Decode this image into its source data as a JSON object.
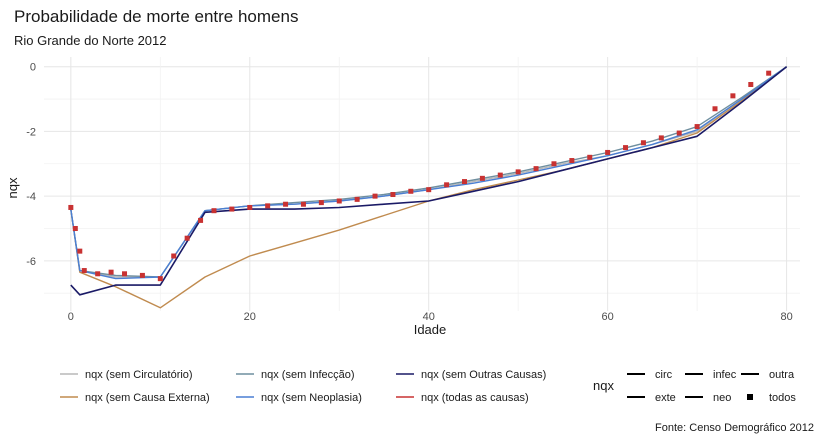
{
  "chart_data": {
    "type": "line",
    "title": "Probabilidade de morte entre homens",
    "subtitle": "Rio Grande do Norte 2012",
    "xlabel": "Idade",
    "ylabel": "nqx",
    "caption": "Fonte: Censo Demográfico 2012",
    "xlim": [
      -3,
      81.5
    ],
    "ylim": [
      -7.55,
      0.3
    ],
    "x_ticks": [
      0,
      20,
      40,
      60,
      80
    ],
    "y_ticks": [
      0,
      -2,
      -4,
      -6
    ],
    "grid": true,
    "legend_placement": "bottom",
    "legend": {
      "color_entries": [
        {
          "label": "nqx (sem Circulatório)",
          "color": "#b8b8b8"
        },
        {
          "label": "nqx (sem Causa Externa)",
          "color": "#c08b4f"
        },
        {
          "label": "nqx (sem Infecção)",
          "color": "#6f8f9f"
        },
        {
          "label": "nqx (sem Neoplasia)",
          "color": "#4a7fd4"
        },
        {
          "label": "nqx (sem Outras Causas)",
          "color": "#1a1a66"
        },
        {
          "label": "nqx (todas as causas)",
          "color": "#c83232"
        }
      ],
      "type_title": "nqx",
      "type_entries": [
        {
          "label": "circ",
          "symbol": "line"
        },
        {
          "label": "infec",
          "symbol": "line"
        },
        {
          "label": "outra",
          "symbol": "line"
        },
        {
          "label": "exte",
          "symbol": "line"
        },
        {
          "label": "neo",
          "symbol": "line"
        },
        {
          "label": "todos",
          "symbol": "point"
        }
      ]
    },
    "series": [
      {
        "name": "nqx (sem Circulatório)",
        "color": "#b8b8b8",
        "points": [
          [
            0,
            -4.4
          ],
          [
            1,
            -6.3
          ],
          [
            5,
            -6.5
          ],
          [
            10,
            -6.5
          ],
          [
            15,
            -4.45
          ],
          [
            20,
            -4.3
          ],
          [
            25,
            -4.25
          ],
          [
            30,
            -4.15
          ],
          [
            35,
            -4.0
          ],
          [
            40,
            -3.8
          ],
          [
            45,
            -3.55
          ],
          [
            50,
            -3.3
          ],
          [
            55,
            -3.0
          ],
          [
            60,
            -2.75
          ],
          [
            65,
            -2.4
          ],
          [
            70,
            -2.0
          ],
          [
            75,
            -1.0
          ],
          [
            80,
            0.0
          ]
        ]
      },
      {
        "name": "nqx (sem Causa Externa)",
        "color": "#c08b4f",
        "points": [
          [
            0,
            -4.4
          ],
          [
            1,
            -6.35
          ],
          [
            5,
            -6.8
          ],
          [
            10,
            -7.45
          ],
          [
            15,
            -6.5
          ],
          [
            20,
            -5.85
          ],
          [
            25,
            -5.45
          ],
          [
            30,
            -5.05
          ],
          [
            35,
            -4.6
          ],
          [
            40,
            -4.15
          ],
          [
            45,
            -3.8
          ],
          [
            50,
            -3.5
          ],
          [
            55,
            -3.2
          ],
          [
            60,
            -2.85
          ],
          [
            65,
            -2.5
          ],
          [
            70,
            -2.05
          ],
          [
            75,
            -1.05
          ],
          [
            80,
            0.0
          ]
        ]
      },
      {
        "name": "nqx (sem Infecção)",
        "color": "#6f8f9f",
        "points": [
          [
            0,
            -4.4
          ],
          [
            1,
            -6.3
          ],
          [
            5,
            -6.45
          ],
          [
            10,
            -6.5
          ],
          [
            15,
            -4.45
          ],
          [
            20,
            -4.3
          ],
          [
            25,
            -4.2
          ],
          [
            30,
            -4.1
          ],
          [
            35,
            -3.95
          ],
          [
            40,
            -3.75
          ],
          [
            45,
            -3.5
          ],
          [
            50,
            -3.25
          ],
          [
            55,
            -2.95
          ],
          [
            60,
            -2.65
          ],
          [
            65,
            -2.3
          ],
          [
            70,
            -1.85
          ],
          [
            75,
            -0.95
          ],
          [
            80,
            0.0
          ]
        ]
      },
      {
        "name": "nqx (sem Neoplasia)",
        "color": "#4a7fd4",
        "points": [
          [
            0,
            -4.4
          ],
          [
            1,
            -6.3
          ],
          [
            5,
            -6.55
          ],
          [
            10,
            -6.5
          ],
          [
            15,
            -4.45
          ],
          [
            20,
            -4.3
          ],
          [
            25,
            -4.25
          ],
          [
            30,
            -4.15
          ],
          [
            35,
            -4.0
          ],
          [
            40,
            -3.8
          ],
          [
            45,
            -3.6
          ],
          [
            50,
            -3.35
          ],
          [
            55,
            -3.05
          ],
          [
            60,
            -2.75
          ],
          [
            65,
            -2.4
          ],
          [
            70,
            -1.95
          ],
          [
            75,
            -1.0
          ],
          [
            80,
            0.0
          ]
        ]
      },
      {
        "name": "nqx (sem Outras Causas)",
        "color": "#1a1a66",
        "points": [
          [
            0,
            -6.75
          ],
          [
            1,
            -7.05
          ],
          [
            5,
            -6.75
          ],
          [
            10,
            -6.75
          ],
          [
            15,
            -4.5
          ],
          [
            20,
            -4.4
          ],
          [
            25,
            -4.4
          ],
          [
            30,
            -4.35
          ],
          [
            35,
            -4.25
          ],
          [
            40,
            -4.15
          ],
          [
            45,
            -3.85
          ],
          [
            50,
            -3.55
          ],
          [
            55,
            -3.2
          ],
          [
            60,
            -2.85
          ],
          [
            65,
            -2.5
          ],
          [
            70,
            -2.15
          ],
          [
            75,
            -1.1
          ],
          [
            80,
            0.0
          ]
        ]
      }
    ],
    "points_series": {
      "name": "nqx (todas as causas)",
      "color": "#c83232",
      "points": [
        [
          0,
          -4.35
        ],
        [
          0.5,
          -5.0
        ],
        [
          1,
          -5.7
        ],
        [
          1.5,
          -6.3
        ],
        [
          3,
          -6.4
        ],
        [
          4.5,
          -6.35
        ],
        [
          6,
          -6.4
        ],
        [
          8,
          -6.45
        ],
        [
          10,
          -6.55
        ],
        [
          11.5,
          -5.85
        ],
        [
          13,
          -5.3
        ],
        [
          14.5,
          -4.75
        ],
        [
          16,
          -4.45
        ],
        [
          18,
          -4.4
        ],
        [
          20,
          -4.35
        ],
        [
          22,
          -4.3
        ],
        [
          24,
          -4.25
        ],
        [
          26,
          -4.25
        ],
        [
          28,
          -4.2
        ],
        [
          30,
          -4.15
        ],
        [
          32,
          -4.1
        ],
        [
          34,
          -4.0
        ],
        [
          36,
          -3.95
        ],
        [
          38,
          -3.85
        ],
        [
          40,
          -3.8
        ],
        [
          42,
          -3.65
        ],
        [
          44,
          -3.55
        ],
        [
          46,
          -3.45
        ],
        [
          48,
          -3.35
        ],
        [
          50,
          -3.25
        ],
        [
          52,
          -3.15
        ],
        [
          54,
          -3.0
        ],
        [
          56,
          -2.9
        ],
        [
          58,
          -2.8
        ],
        [
          60,
          -2.65
        ],
        [
          62,
          -2.5
        ],
        [
          64,
          -2.35
        ],
        [
          66,
          -2.2
        ],
        [
          68,
          -2.05
        ],
        [
          70,
          -1.85
        ],
        [
          72,
          -1.3
        ],
        [
          74,
          -0.9
        ],
        [
          76,
          -0.55
        ],
        [
          78,
          -0.2
        ]
      ]
    }
  }
}
